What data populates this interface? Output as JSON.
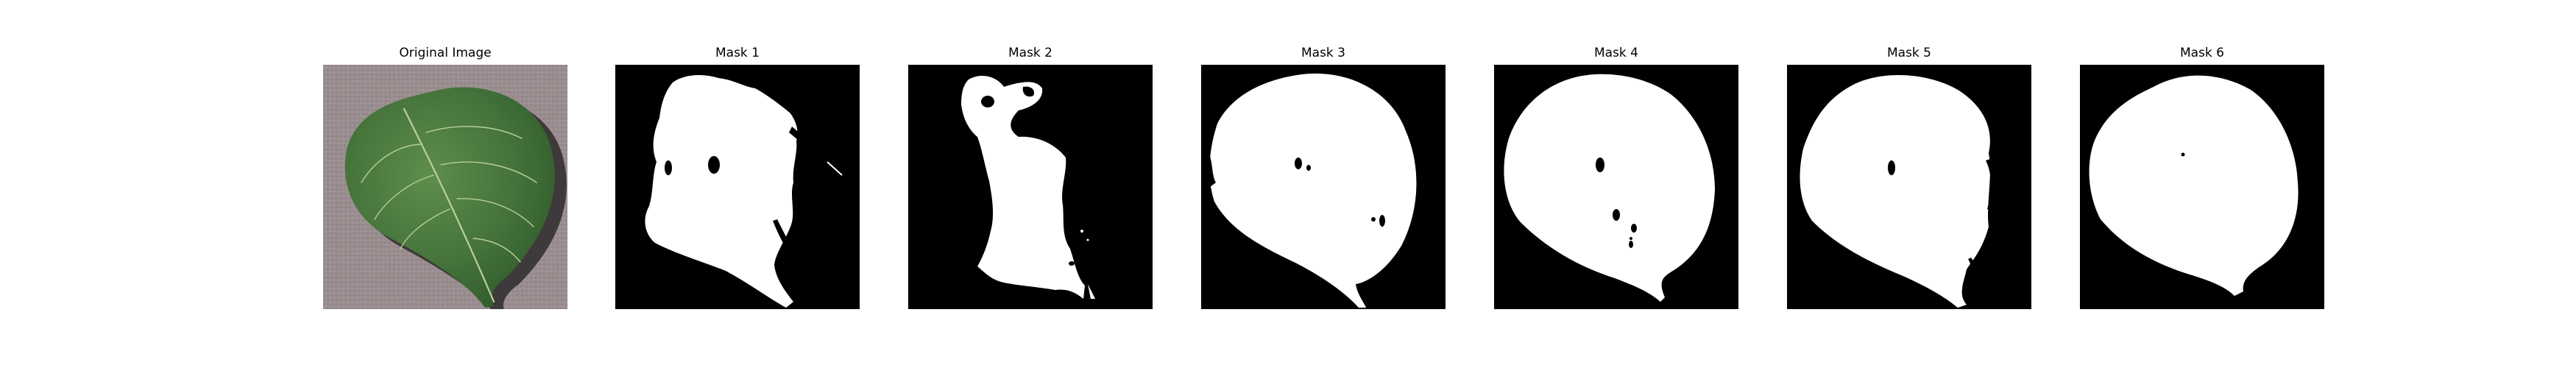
{
  "figure": {
    "panels": [
      {
        "title": "Original Image",
        "kind": "photo"
      },
      {
        "title": "Mask 1",
        "kind": "mask"
      },
      {
        "title": "Mask 2",
        "kind": "mask"
      },
      {
        "title": "Mask 3",
        "kind": "mask"
      },
      {
        "title": "Mask 4",
        "kind": "mask"
      },
      {
        "title": "Mask 5",
        "kind": "mask"
      },
      {
        "title": "Mask 6",
        "kind": "mask"
      }
    ]
  },
  "colors": {
    "mask_background": "#000000",
    "mask_foreground": "#ffffff",
    "ground": "#9a8c8e",
    "leaf_dark": "#3f6b33",
    "leaf_mid": "#5b8a48",
    "leaf_vein": "#b9cf9c",
    "shadow": "#2e2a2b"
  }
}
